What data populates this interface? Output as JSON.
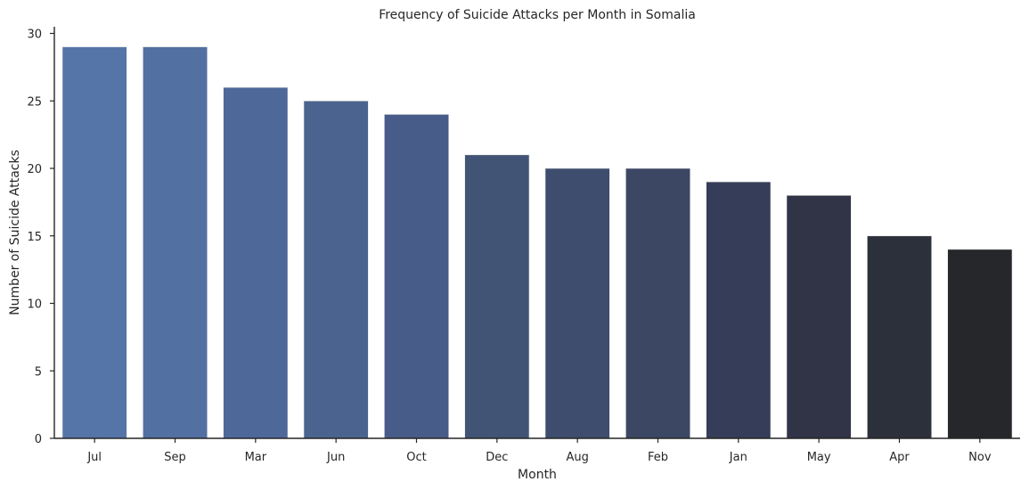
{
  "chart_data": {
    "type": "bar",
    "title": "Frequency of Suicide Attacks per Month in Somalia",
    "xlabel": "Month",
    "ylabel": "Number of Suicide Attacks",
    "categories": [
      "Jul",
      "Sep",
      "Mar",
      "Jun",
      "Oct",
      "Dec",
      "Aug",
      "Feb",
      "Jan",
      "May",
      "Apr",
      "Nov"
    ],
    "values": [
      29,
      29,
      26,
      25,
      24,
      21,
      20,
      20,
      19,
      18,
      15,
      14
    ],
    "ylim": [
      0,
      30.45
    ],
    "yticks": [
      0,
      5,
      10,
      15,
      20,
      25,
      30
    ],
    "grid": false,
    "colors": [
      "#5575a8",
      "#5270a1",
      "#4e689a",
      "#4b638f",
      "#475c88",
      "#425476",
      "#3e4d6e",
      "#3b4763",
      "#363d58",
      "#313447",
      "#2c303a",
      "#25272b"
    ]
  }
}
